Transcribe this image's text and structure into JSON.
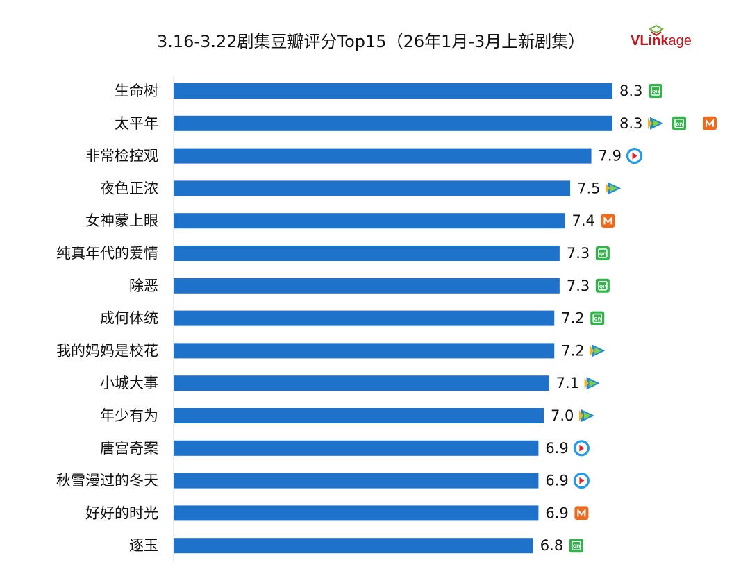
{
  "title": "3.16-3.22剧集豆瓣评分Top15（26年1月-3月上新剧集）",
  "brand": {
    "part1": "VLink",
    "part2": "age"
  },
  "colors": {
    "bar": "#1f72c9",
    "iqiyi": "#2fb54a",
    "tencent": "#1c8be0",
    "youku": "#1f9bec",
    "mango": "#ee6a1c"
  },
  "chart_data": {
    "type": "bar",
    "orientation": "horizontal",
    "title": "3.16-3.22剧集豆瓣评分Top15（26年1月-3月上新剧集）",
    "xlim": [
      0,
      8.3
    ],
    "grid": false,
    "categories": [
      "生命树",
      "太平年",
      "非常检控观",
      "夜色正浓",
      "女神蒙上眼",
      "纯真年代的爱情",
      "除恶",
      "成何体统",
      "我的妈妈是校花",
      "小城大事",
      "年少有为",
      "唐宫奇案",
      "秋雪漫过的冬天",
      "好好的时光",
      "逐玉"
    ],
    "values": [
      8.3,
      8.3,
      7.9,
      7.5,
      7.4,
      7.3,
      7.3,
      7.2,
      7.2,
      7.1,
      7.0,
      6.9,
      6.9,
      6.9,
      6.8
    ],
    "labels": [
      "8.3",
      "8.3",
      "7.9",
      "7.5",
      "7.4",
      "7.3",
      "7.3",
      "7.2",
      "7.2",
      "7.1",
      "7.0",
      "6.9",
      "6.9",
      "6.9",
      "6.8"
    ],
    "platforms": [
      [
        "iqiyi"
      ],
      [
        "tencent",
        "iqiyi",
        "mango"
      ],
      [
        "youku"
      ],
      [
        "tencent"
      ],
      [
        "mango"
      ],
      [
        "iqiyi"
      ],
      [
        "iqiyi"
      ],
      [
        "iqiyi"
      ],
      [
        "tencent"
      ],
      [
        "tencent"
      ],
      [
        "tencent"
      ],
      [
        "youku"
      ],
      [
        "youku"
      ],
      [
        "mango"
      ],
      [
        "iqiyi"
      ]
    ]
  }
}
